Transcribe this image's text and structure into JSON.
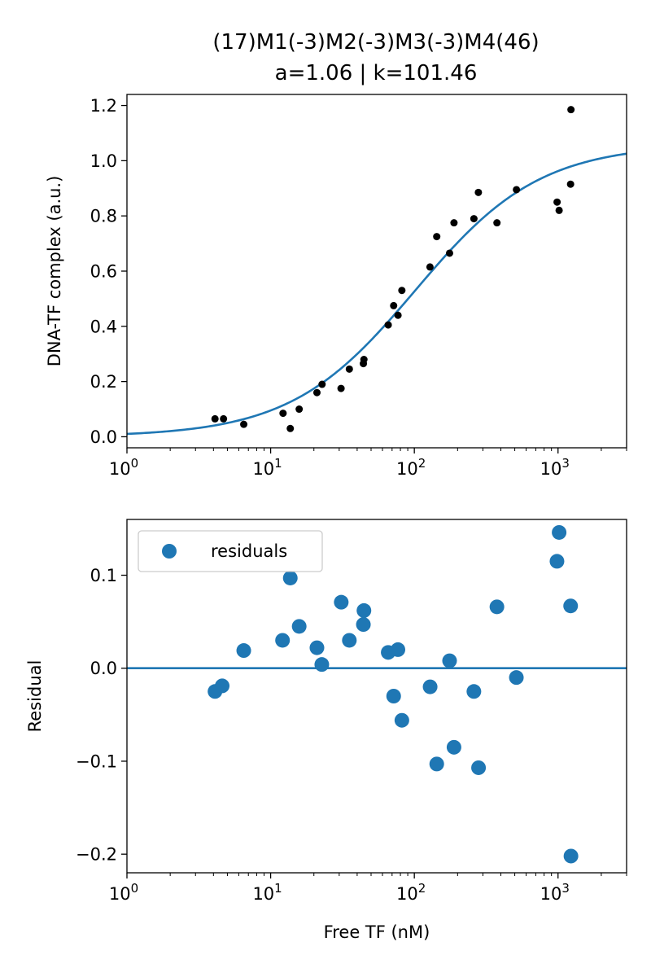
{
  "figure": {
    "title_line1": "(17)M1(-3)M2(-3)M3(-3)M4(46)",
    "title_line2": "a=1.06 | k=101.46"
  },
  "colors": {
    "fit": "#1f77b4",
    "points": "#000000",
    "residuals": "#1f77b4",
    "axes": "#000000",
    "legend_border": "#cccccc"
  },
  "chart_data": [
    {
      "type": "scatter",
      "ylabel": "DNA-TF complex (a.u.)",
      "xlabel": "",
      "xscale": "log",
      "xlim": [
        1,
        3000
      ],
      "ylim": [
        -0.04,
        1.24
      ],
      "yticks": [
        0.0,
        0.2,
        0.4,
        0.6,
        0.8,
        1.0,
        1.2
      ],
      "ytick_labels": [
        "0.0",
        "0.2",
        "0.4",
        "0.6",
        "0.8",
        "1.0",
        "1.2"
      ],
      "xticks": [
        1,
        10,
        100,
        1000
      ],
      "xtick_labels": [
        {
          "base": "10",
          "exp": "0"
        },
        {
          "base": "10",
          "exp": "1"
        },
        {
          "base": "10",
          "exp": "2"
        },
        {
          "base": "10",
          "exp": "3"
        }
      ],
      "grid": false,
      "fit": {
        "model": "a*x/(k+x)",
        "a": 1.06,
        "k": 101.46
      },
      "series": [
        {
          "kind": "points",
          "x": [
            4.1,
            4.7,
            6.5,
            12.2,
            13.7,
            15.8,
            21.0,
            22.8,
            30.9,
            35.3,
            44.2,
            44.6,
            65.8,
            71.8,
            77.0,
            81.9,
            128.5,
            143.2,
            175.9,
            188.8,
            259.8,
            279.1,
            375.9,
            513.6,
            985.1,
            1017.9,
            1222.7,
            1230.5
          ],
          "y": [
            0.065,
            0.065,
            0.045,
            0.085,
            0.03,
            0.1,
            0.16,
            0.19,
            0.175,
            0.245,
            0.265,
            0.28,
            0.405,
            0.475,
            0.44,
            0.53,
            0.615,
            0.725,
            0.665,
            0.775,
            0.79,
            0.885,
            0.775,
            0.895,
            0.85,
            0.82,
            0.915,
            1.185
          ]
        }
      ]
    },
    {
      "type": "scatter",
      "ylabel": "Residual",
      "xlabel": "Free TF (nM)",
      "xscale": "log",
      "xlim": [
        1,
        3000
      ],
      "ylim": [
        -0.22,
        0.16
      ],
      "yticks": [
        -0.2,
        -0.1,
        0.0,
        0.1
      ],
      "ytick_labels": [
        "−0.2",
        "−0.1",
        "0.0",
        "0.1"
      ],
      "xticks": [
        1,
        10,
        100,
        1000
      ],
      "xtick_labels": [
        {
          "base": "10",
          "exp": "0"
        },
        {
          "base": "10",
          "exp": "1"
        },
        {
          "base": "10",
          "exp": "2"
        },
        {
          "base": "10",
          "exp": "3"
        }
      ],
      "grid": false,
      "legend": {
        "position": "top-left",
        "entries": [
          "residuals"
        ]
      },
      "zero_line": 0,
      "series": [
        {
          "name": "residuals",
          "x": [
            4.1,
            4.6,
            6.5,
            12.1,
            13.7,
            15.8,
            21.0,
            22.7,
            31.0,
            35.3,
            44.2,
            44.6,
            65.8,
            71.8,
            76.9,
            81.9,
            128.8,
            143.2,
            175.9,
            188.8,
            259.7,
            279.8,
            375.6,
            512.9,
            983.2,
            1017.8,
            1223.9,
            1230.3
          ],
          "y": [
            -0.025,
            -0.019,
            0.019,
            0.03,
            0.097,
            0.045,
            0.022,
            0.004,
            0.071,
            0.03,
            0.047,
            0.062,
            0.017,
            -0.03,
            0.02,
            -0.056,
            -0.02,
            -0.103,
            0.008,
            -0.085,
            -0.025,
            -0.107,
            0.066,
            -0.01,
            0.115,
            0.146,
            0.067,
            -0.202
          ]
        }
      ]
    }
  ]
}
